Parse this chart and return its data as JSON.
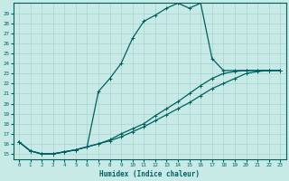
{
  "xlabel": "Humidex (Indice chaleur)",
  "bg_color": "#c8eae6",
  "line_color": "#006060",
  "grid_color": "#a8d4d0",
  "xlim": [
    -0.5,
    23.5
  ],
  "ylim": [
    14.5,
    30.0
  ],
  "yticks": [
    15,
    16,
    17,
    18,
    19,
    20,
    21,
    22,
    23,
    24,
    25,
    26,
    27,
    28,
    29
  ],
  "xticks": [
    0,
    1,
    2,
    3,
    4,
    5,
    6,
    7,
    8,
    9,
    10,
    11,
    12,
    13,
    14,
    15,
    16,
    17,
    18,
    19,
    20,
    21,
    22,
    23
  ],
  "line_main_x": [
    0,
    1,
    2,
    3,
    4,
    5,
    6,
    7,
    8,
    9,
    10,
    11,
    12,
    13,
    14,
    15,
    16,
    17,
    18,
    19,
    20,
    21,
    22,
    23
  ],
  "line_main_y": [
    16.2,
    15.3,
    15.0,
    15.0,
    15.2,
    15.4,
    15.7,
    21.2,
    22.5,
    24.0,
    26.5,
    28.2,
    28.8,
    29.5,
    30.0,
    29.5,
    30.0,
    24.5,
    23.3,
    23.3,
    23.3,
    23.3,
    23.3,
    23.3
  ],
  "line2_x": [
    0,
    1,
    2,
    3,
    4,
    5,
    6,
    7,
    8,
    9,
    10,
    11,
    12,
    13,
    14,
    15,
    16,
    17,
    18,
    19,
    20,
    21,
    22,
    23
  ],
  "line2_y": [
    16.2,
    15.3,
    15.0,
    15.0,
    15.2,
    15.4,
    15.7,
    16.0,
    16.4,
    17.0,
    17.5,
    18.0,
    18.8,
    19.5,
    20.2,
    21.0,
    21.8,
    22.5,
    23.0,
    23.2,
    23.3,
    23.3,
    23.3,
    23.3
  ],
  "line3_x": [
    0,
    1,
    2,
    3,
    4,
    5,
    6,
    7,
    8,
    9,
    10,
    11,
    12,
    13,
    14,
    15,
    16,
    17,
    18,
    19,
    20,
    21,
    22,
    23
  ],
  "line3_y": [
    16.2,
    15.3,
    15.0,
    15.0,
    15.2,
    15.4,
    15.7,
    16.0,
    16.3,
    16.7,
    17.2,
    17.7,
    18.3,
    18.9,
    19.5,
    20.1,
    20.8,
    21.5,
    22.0,
    22.5,
    23.0,
    23.2,
    23.3,
    23.3
  ],
  "marker": "+",
  "markersize": 3,
  "linewidth": 0.9
}
